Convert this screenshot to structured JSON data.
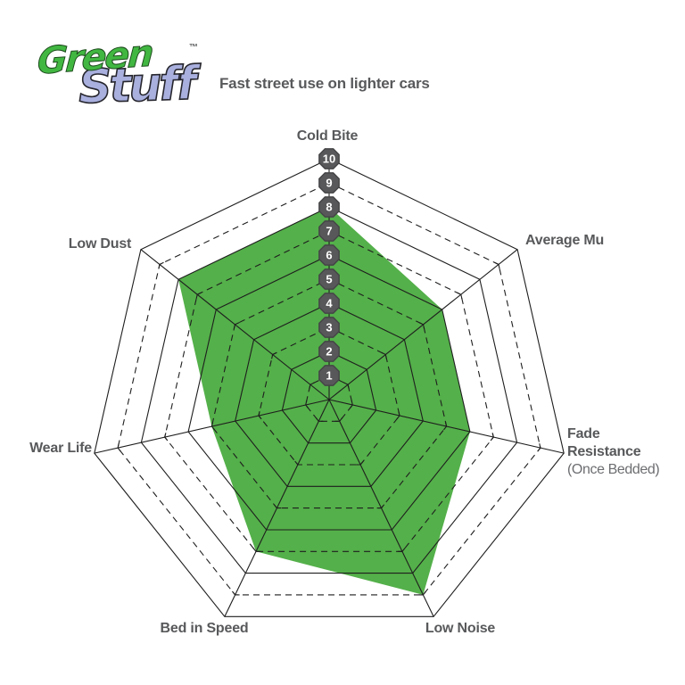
{
  "logo": {
    "line1": "Green",
    "line2": "Stuff",
    "tm": "™",
    "green_color": "#41B741",
    "purple_color": "#A9B0DE"
  },
  "chart_data": {
    "type": "radar",
    "title": "Fast street use on lighter cars",
    "categories": [
      "Cold Bite",
      "Average Mu",
      "Fade Resistance",
      "Low Noise",
      "Bed in Speed",
      "Wear Life",
      "Low Dust"
    ],
    "values": [
      8,
      6,
      6,
      9,
      7,
      5,
      8
    ],
    "axis_note": {
      "axis": "Fade Resistance",
      "text": "(Once Bedded)"
    },
    "scale_ticks": [
      1,
      2,
      3,
      4,
      5,
      6,
      7,
      8,
      9,
      10
    ],
    "axis_range": [
      0,
      10
    ],
    "grid": {
      "rings": 10,
      "even_rings": "solid",
      "odd_rings": "dashed",
      "spokes": 7
    },
    "legend": "none",
    "colors": {
      "fill": "#54B04A",
      "grid_line": "#1E1E1E",
      "badge_fill": "#58585A",
      "badge_edge": "#454547",
      "badge_text": "#FFFFFF",
      "label": "#58595B",
      "note": "#6D6E71"
    }
  }
}
